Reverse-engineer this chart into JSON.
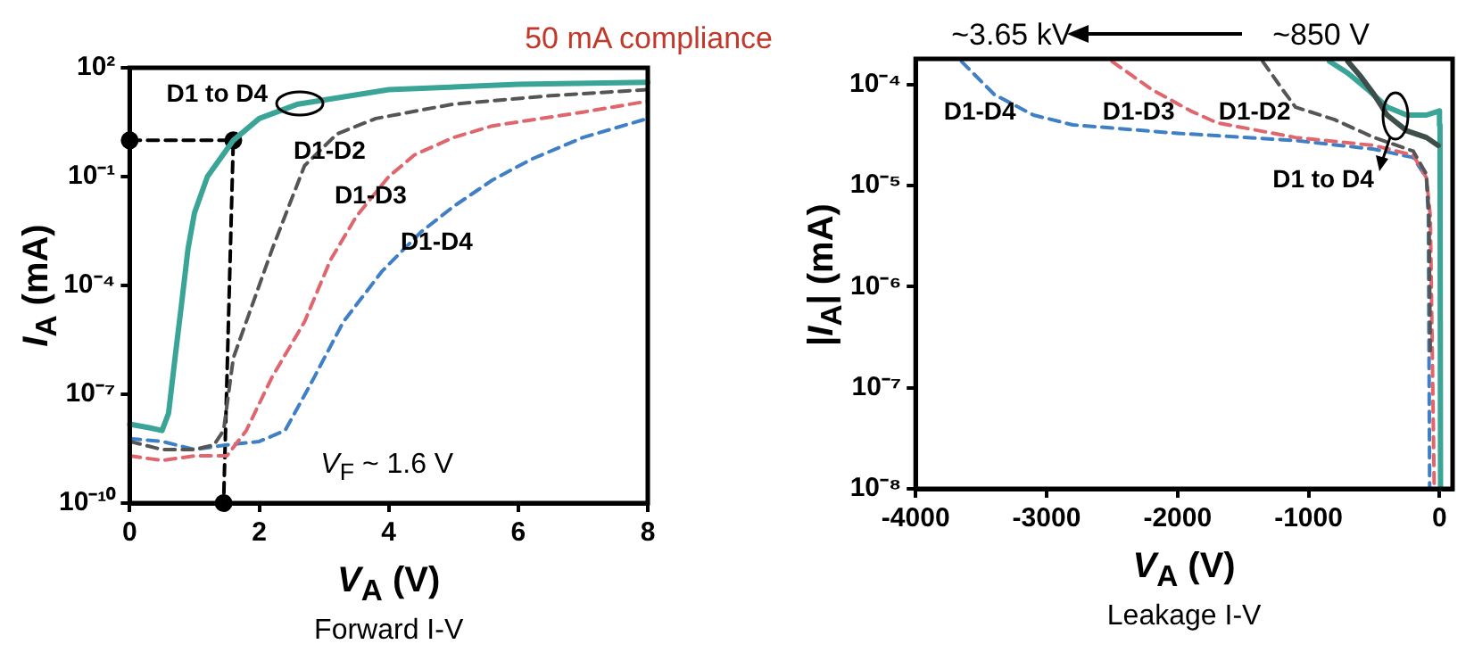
{
  "chart_data": [
    {
      "type": "line",
      "title": "Forward I-V",
      "xlabel": "V$_{A}$ (V)",
      "ylabel": "I$_{A}$ (mA)",
      "log": "y",
      "xlim": [
        0,
        8
      ],
      "xticks": [
        0,
        2,
        4,
        6,
        8
      ],
      "ylim": [
        1e-10,
        100
      ],
      "yticks": [
        {
          "value": 1e-10,
          "label": "10⁻¹⁰"
        },
        {
          "value": 1e-07,
          "label": "10⁻⁷"
        },
        {
          "value": 0.0001,
          "label": "10⁻⁴"
        },
        {
          "value": 0.1,
          "label": "10⁻¹"
        },
        {
          "value": 100,
          "label": "10²"
        }
      ],
      "legend": false,
      "grid": false,
      "series": [
        {
          "name": "D1-D2",
          "type": "line",
          "color": "#555555",
          "line_style": "dashed",
          "x": [
            0,
            0.5,
            1.0,
            1.3,
            1.45,
            1.6,
            1.8,
            2.2,
            2.7,
            3.2,
            3.8,
            5,
            6.5,
            8
          ],
          "values": [
            5e-09,
            3e-09,
            3e-09,
            4e-09,
            1e-08,
            1e-06,
            1e-05,
            0.001,
            0.2,
            1.5,
            4,
            10,
            17,
            25
          ]
        },
        {
          "name": "D1-D3",
          "type": "line",
          "color": "#e0666e",
          "line_style": "dashed",
          "x": [
            0,
            0.5,
            1,
            1.5,
            1.8,
            2.2,
            2.7,
            3.1,
            3.5,
            4,
            4.4,
            5,
            5.6,
            7,
            8
          ],
          "values": [
            2e-09,
            1.5e-09,
            2e-09,
            2e-09,
            1e-08,
            3e-07,
            1e-05,
            0.0005,
            0.008,
            0.1,
            0.4,
            1.2,
            2.5,
            6,
            12
          ]
        },
        {
          "name": "D1-D4",
          "type": "line",
          "color": "#3f7fc6",
          "line_style": "dashed",
          "x": [
            0,
            0.5,
            1,
            1.5,
            2,
            2.4,
            2.8,
            3.3,
            3.9,
            4.5,
            5,
            5.6,
            6.2,
            7,
            8
          ],
          "values": [
            6e-09,
            5e-09,
            3e-09,
            4e-09,
            5e-09,
            1e-08,
            2e-07,
            1e-05,
            0.00025,
            0.003,
            0.015,
            0.08,
            0.3,
            1.2,
            4
          ]
        },
        {
          "name": "D1 to D4",
          "type": "line",
          "color": "#3aa597",
          "line_style": "solid",
          "x": [
            0,
            0.3,
            0.5,
            0.6,
            0.7,
            0.8,
            0.9,
            1.0,
            1.2,
            1.6,
            2,
            2.6,
            4,
            6,
            8
          ],
          "values": [
            1.5e-08,
            1.2e-08,
            1e-08,
            3e-08,
            1e-06,
            3e-05,
            0.001,
            0.01,
            0.1,
            1,
            4,
            10,
            25,
            35,
            40
          ]
        },
        {
          "type": "line",
          "color": "#000000",
          "line_style": "dashed",
          "marker": "circle",
          "x": [
            0,
            1.6,
            1.45
          ],
          "values": [
            1,
            1,
            1e-10
          ]
        }
      ],
      "annotations": [
        "50 mA compliance",
        "V$_{F}$ ~ 1.6 V"
      ]
    },
    {
      "type": "line",
      "title": "Leakage I-V",
      "xlabel": "V$_{A}$ (V)",
      "ylabel": "|I$_{A}$| (mA)",
      "log": "y",
      "xlim": [
        -4000,
        100
      ],
      "xticks": [
        -4000,
        -3000,
        -2000,
        -1000,
        0
      ],
      "ylim": [
        1e-08,
        0.00018
      ],
      "yticks": [
        {
          "value": 1e-08,
          "label": "10⁻⁸"
        },
        {
          "value": 1e-07,
          "label": "10⁻⁷"
        },
        {
          "value": 1e-06,
          "label": "10⁻⁶"
        },
        {
          "value": 1e-05,
          "label": "10⁻⁵"
        },
        {
          "value": 0.0001,
          "label": "10⁻⁴"
        }
      ],
      "legend": false,
      "grid": false,
      "series": [
        {
          "name": "D1-D2",
          "type": "line",
          "color": "#555555",
          "line_style": "dashed",
          "x": [
            -1350,
            -1200,
            -1100,
            -800,
            -500,
            -200,
            -100,
            -80,
            -70
          ],
          "values": [
            0.00017,
            9e-05,
            6e-05,
            4.5e-05,
            3e-05,
            2.2e-05,
            1.3e-05,
            5e-06,
            2e-07
          ]
        },
        {
          "name": "D1-D3",
          "type": "line",
          "color": "#e0666e",
          "line_style": "dashed",
          "x": [
            -2500,
            -2200,
            -1900,
            -1700,
            -1100,
            -500,
            -200,
            -100,
            -70,
            -40
          ],
          "values": [
            0.00017,
            9e-05,
            5.5e-05,
            4.2e-05,
            3e-05,
            2.5e-05,
            2e-05,
            1.2e-05,
            5e-06,
            1e-08
          ]
        },
        {
          "name": "D1-D4",
          "type": "line",
          "color": "#3f7fc6",
          "line_style": "dashed",
          "x": [
            -3650,
            -3400,
            -3100,
            -2800,
            -2000,
            -1100,
            -500,
            -200,
            -100,
            -85,
            -75
          ],
          "values": [
            0.00017,
            8e-05,
            5e-05,
            4e-05,
            3.3e-05,
            2.8e-05,
            2.3e-05,
            1.9e-05,
            1.2e-05,
            5e-06,
            1e-08
          ]
        },
        {
          "type": "line",
          "color": "#3d4f4a",
          "line_style": "solid",
          "x": [
            -10,
            -100,
            -250,
            -400,
            -500,
            -600,
            -700
          ],
          "values": [
            2.5e-05,
            3e-05,
            3.5e-05,
            5e-05,
            8e-05,
            0.00012,
            0.00017
          ]
        },
        {
          "type": "line",
          "color": "#3aa597",
          "line_style": "solid",
          "x": [
            8,
            4,
            0,
            -100,
            -250,
            -400,
            -550,
            -700,
            -840
          ],
          "values": [
            1e-08,
            4e-05,
            5.5e-05,
            5e-05,
            5e-05,
            6e-05,
            9e-05,
            0.00013,
            0.00017
          ]
        }
      ],
      "annotations": [
        "~3.65 kV",
        "~850 V",
        "D1 to D4"
      ]
    }
  ]
}
